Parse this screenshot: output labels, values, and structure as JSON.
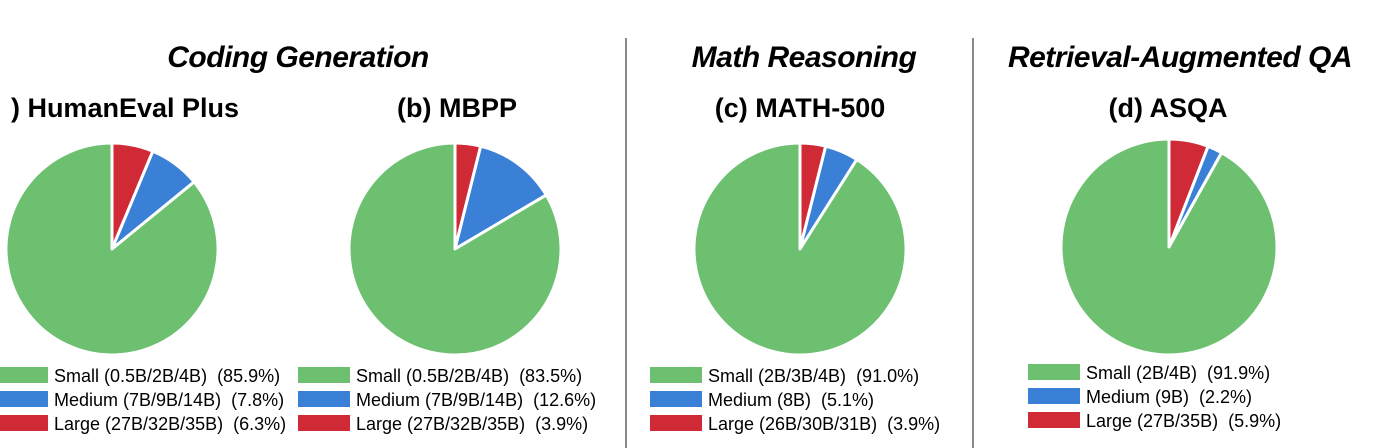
{
  "groups": [
    {
      "title": "Coding Generation"
    },
    {
      "title": "Math Reasoning"
    },
    {
      "title": "Retrieval-Augmented QA"
    }
  ],
  "colors": {
    "small": "#6cc070",
    "medium": "#3a80d6",
    "large": "#cf2a36",
    "divider": "#8a8a8a"
  },
  "chart_data": [
    {
      "type": "pie",
      "title": ") HumanEval Plus",
      "group": "Coding Generation",
      "slices": [
        {
          "label": "Small (0.5B/2B/4B)",
          "pct_text": "(85.9%)",
          "value": 85.9,
          "color": "#6cc070"
        },
        {
          "label": "Medium (7B/9B/14B)",
          "pct_text": "(7.8%)",
          "value": 7.8,
          "color": "#3a80d6"
        },
        {
          "label": "Large (27B/32B/35B)",
          "pct_text": "(6.3%)",
          "value": 6.3,
          "color": "#cf2a36"
        }
      ]
    },
    {
      "type": "pie",
      "title": "(b) MBPP",
      "group": "Coding Generation",
      "slices": [
        {
          "label": "Small (0.5B/2B/4B)",
          "pct_text": "(83.5%)",
          "value": 83.5,
          "color": "#6cc070"
        },
        {
          "label": "Medium (7B/9B/14B)",
          "pct_text": "(12.6%)",
          "value": 12.6,
          "color": "#3a80d6"
        },
        {
          "label": "Large (27B/32B/35B)",
          "pct_text": "(3.9%)",
          "value": 3.9,
          "color": "#cf2a36"
        }
      ]
    },
    {
      "type": "pie",
      "title": "(c) MATH-500",
      "group": "Math Reasoning",
      "slices": [
        {
          "label": "Small (2B/3B/4B)",
          "pct_text": "(91.0%)",
          "value": 91.0,
          "color": "#6cc070"
        },
        {
          "label": "Medium (8B)",
          "pct_text": "(5.1%)",
          "value": 5.1,
          "color": "#3a80d6"
        },
        {
          "label": "Large (26B/30B/31B)",
          "pct_text": "(3.9%)",
          "value": 3.9,
          "color": "#cf2a36"
        }
      ]
    },
    {
      "type": "pie",
      "title": "(d) ASQA",
      "group": "Retrieval-Augmented QA",
      "slices": [
        {
          "label": "Small (2B/4B)",
          "pct_text": "(91.9%)",
          "value": 91.9,
          "color": "#6cc070"
        },
        {
          "label": "Medium (9B)",
          "pct_text": "(2.2%)",
          "value": 2.2,
          "color": "#3a80d6"
        },
        {
          "label": "Large (27B/35B)",
          "pct_text": "(5.9%)",
          "value": 5.9,
          "color": "#cf2a36"
        }
      ]
    }
  ]
}
